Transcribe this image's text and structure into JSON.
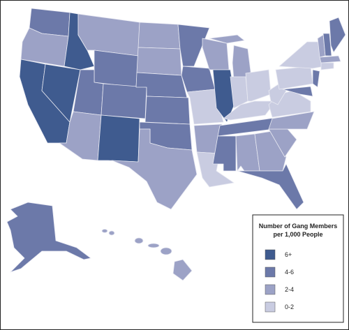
{
  "legend": {
    "title": [
      "Number of Gang Members",
      "per 1,000 People"
    ],
    "items": [
      {
        "label": "6+",
        "color": "#3f5b8f"
      },
      {
        "label": "4-6",
        "color": "#6c79a9"
      },
      {
        "label": "2-4",
        "color": "#9ca2c6"
      },
      {
        "label": "0-2",
        "color": "#c9cce1"
      }
    ]
  }
}
